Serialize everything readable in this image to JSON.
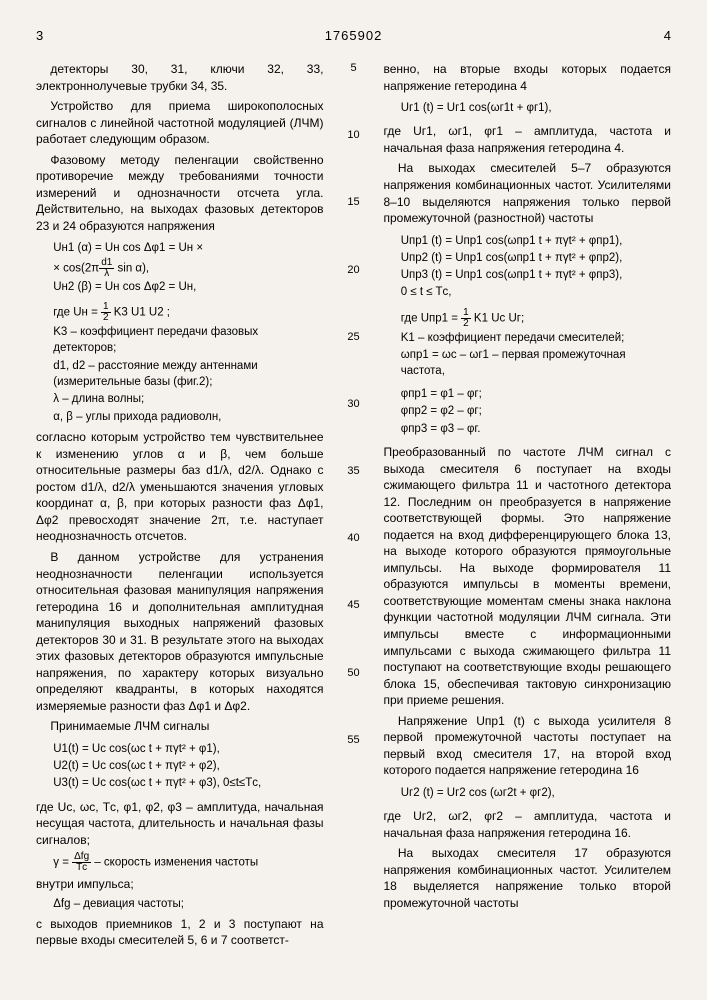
{
  "header": {
    "left_page": "3",
    "doc_number": "1765902",
    "right_page": "4"
  },
  "line_markers": [
    "5",
    "10",
    "15",
    "20",
    "25",
    "30",
    "35",
    "40",
    "45",
    "50",
    "55"
  ],
  "left": {
    "p1": "детекторы 30, 31, ключи 32, 33, электроннолучевые трубки 34, 35.",
    "p2": "Устройство для приема широкополосных сигналов с линейной частотной модуляцией (ЛЧМ) работает следующим образом.",
    "p3": "Фазовому методу пеленгации свойственно противоречие между требованиями точности измерений и однозначности отсчета угла. Действительно, на выходах фазовых детекторов 23 и 24 образуются напряжения",
    "eq1a": "Uн1 (α) = Uн cos Δφ1 = Uн ×",
    "eq1b": "× cos(2π",
    "eq1c": " sin α),",
    "eq1_frac_n": "d1",
    "eq1_frac_d": "λ",
    "eq2": "Uн2 (β) = Uн cos Δφ2 = Uн,",
    "eq3_pre": "где Uн = ",
    "eq3_frac_n": "1",
    "eq3_frac_d": "2",
    "eq3_post": " K3 U1 U2 ;",
    "def_k3": "K3 – коэффициент передачи фазовых детекторов;",
    "def_d": "d1, d2 – расстояние между антеннами (измерительные базы (фиг.2);",
    "def_lambda": "λ – длина волны;",
    "def_ab": "α, β – углы прихода радиоволн,",
    "p4": "согласно которым устройство тем чувствительнее к изменению углов α и β, чем больше относительные размеры баз d1/λ, d2/λ. Однако с ростом d1/λ, d2/λ уменьшаются значения угловых координат α, β, при которых разности фаз Δφ1, Δφ2 превосходят значение 2π, т.е. наступает неоднозначность отсчетов.",
    "p5": "В данном устройстве для устранения неоднозначности пеленгации используется относительная фазовая манипуляция напряжения гетеродина 16 и дополнительная амплитудная манипуляция выходных напряжений фазовых детекторов 30 и 31. В результате этого на выходах этих фазовых детекторов образуются импульсные напряжения, по характеру которых визуально определяют квадранты, в которых находятся измеряемые разности фаз Δφ1 и Δφ2.",
    "p6": "Принимаемые ЛЧМ сигналы",
    "eqU1": "U1(t) = Uс cos(ωс t + πγt² + φ1),",
    "eqU2": "U2(t) = Uс cos(ωс t + πγt² + φ2),",
    "eqU3": "U3(t) = Uс cos(ωс t + πγt² + φ3), 0≤t≤Tс,",
    "p7": "где Uс, ωс, Tс, φ1, φ2, φ3 – амплитуда, начальная несущая частота, длительность и начальная фазы сигналов;",
    "eq_gamma_pre": "γ = ",
    "eq_gamma_frac_n": "Δfg",
    "eq_gamma_frac_d": "Tс",
    "eq_gamma_post": " – скорость изменения частоты",
    "p8": "внутри импульса;",
    "def_dfg": "Δfg – девиация частоты;",
    "p9": "с выходов приемников 1, 2 и 3 поступают на первые входы смесителей 5, 6 и 7 соответст-"
  },
  "right": {
    "p1": "венно, на вторые входы которых подается напряжение гетеродина 4",
    "eqUr1": "Uг1 (t) = Uг1 cos(ωг1t + φг1),",
    "p2": "где Uг1, ωг1, φг1 – амплитуда, частота и начальная фаза напряжения гетеродина 4.",
    "p3": "На выходах смесителей 5–7 образуются напряжения комбинационных частот. Усилителями 8–10 выделяются напряжения только первой промежуточной (разностной) частоты",
    "eqUpr1": "Uпр1 (t) = Uпр1 cos(ωпр1 t + πγt² + φпр1),",
    "eqUpr2": "Uпр2 (t) = Uпр1 cos(ωпр1 t + πγt² + φпр2),",
    "eqUpr3": "Uпр3 (t) = Uпр1 cos(ωпр1 t + πγt² + φпр3),",
    "eq_tlim": "0 ≤ t ≤ Tс,",
    "eqUpr_def_pre": "где Uпр1 = ",
    "eqUpr_frac_n": "1",
    "eqUpr_frac_d": "2",
    "eqUpr_def_post": " K1 Uс Uг;",
    "def_k1": "K1 – коэффициент передачи смесителей;",
    "def_wpr": "ωпр1 = ωс – ωг1 – первая промежуточная частота,",
    "eqphi1": "φпр1 = φ1 – φг;",
    "eqphi2": "φпр2 = φ2 – φг;",
    "eqphi3": "φпр3 = φ3 – φг.",
    "p4": "Преобразованный по частоте ЛЧМ сигнал с выхода смесителя 6 поступает на входы сжимающего фильтра 11 и частотного детектора 12. Последним он преобразуется в напряжение соответствующей формы. Это напряжение подается на вход дифференцирующего блока 13, на выходе которого образуются прямоугольные импульсы. На выходе формирователя 11 образуются импульсы в моменты времени, соответствующие моментам смены знака наклона функции частотной модуляции ЛЧМ сигнала. Эти импульсы вместе с информационными импульсами с выхода сжимающего фильтра 11 поступают на соответствующие входы решающего блока 15, обеспечивая тактовую синхронизацию при приеме решения.",
    "p5": "Напряжение Uпр1 (t) с выхода усилителя 8 первой промежуточной частоты поступает на первый вход смесителя 17, на второй вход которого подается напряжение гетеродина 16",
    "eqUr2": "Uг2 (t) = Uг2  cos (ωг2t + φг2),",
    "p6": "где Uг2, ωг2, φг2 – амплитуда, частота и начальная фаза напряжения гетеродина 16.",
    "p7": "На выходах смесителя 17 образуются напряжения комбинационных частот. Усилителем 18 выделяется напряжение только второй промежуточной частоты"
  }
}
